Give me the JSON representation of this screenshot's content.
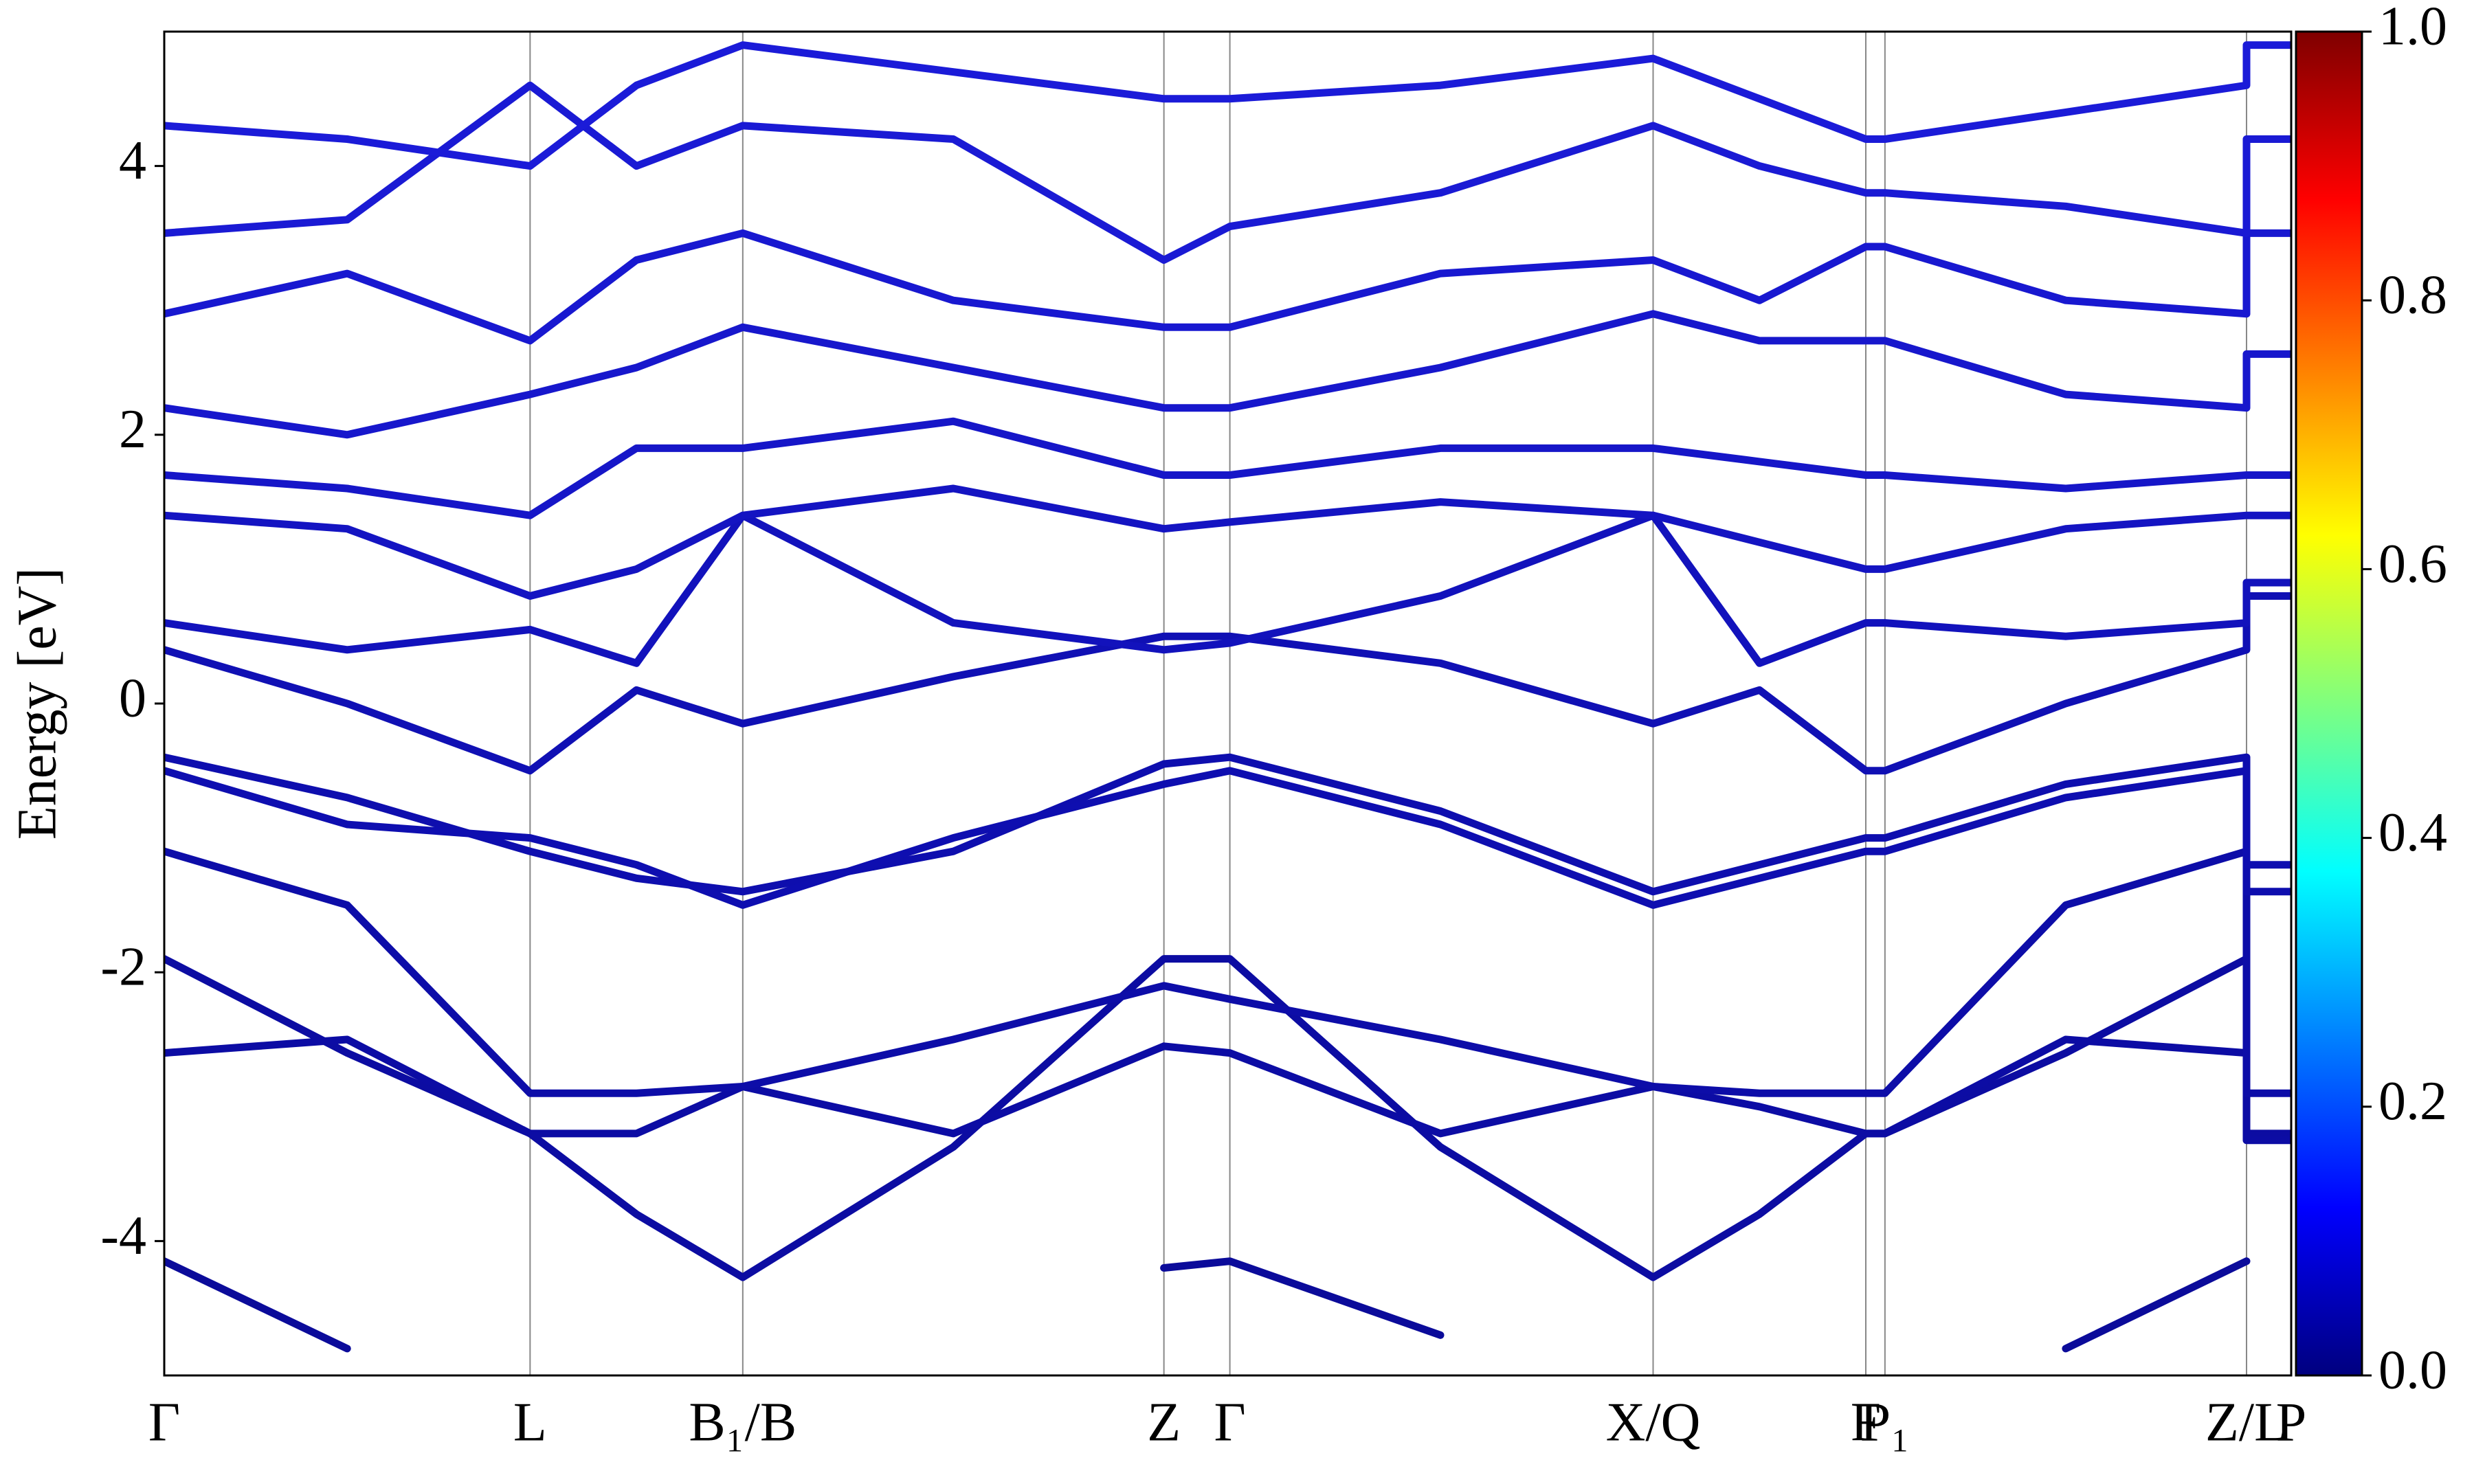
{
  "chart_data": {
    "type": "line",
    "ylabel": "Energy [eV]",
    "xlim": [
      0,
      1
    ],
    "ylim": [
      -5,
      5
    ],
    "yticks": [
      -4,
      -2,
      0,
      2,
      4
    ],
    "xticks": [
      {
        "value": 0,
        "label": "Γ"
      },
      {
        "value": 0.172,
        "label": "L"
      },
      {
        "value": 0.272,
        "label": "B₁/B"
      },
      {
        "value": 0.47,
        "label": "Z"
      },
      {
        "value": 0.501,
        "label": "Γ"
      },
      {
        "value": 0.7,
        "label": "X/Q"
      },
      {
        "value": 0.8,
        "label": "F"
      },
      {
        "value": 0.809,
        "label": "P₁"
      },
      {
        "value": 0.979,
        "label": "Z/L"
      },
      {
        "value": 1.0,
        "label": "P"
      }
    ],
    "x": [
      0,
      0.086,
      0.172,
      0.222,
      0.272,
      0.371,
      0.47,
      0.501,
      0.6,
      0.7,
      0.75,
      0.8,
      0.809,
      0.894,
      0.979,
      0.979,
      1.0
    ],
    "series": [
      {
        "color": "#0b0b9a",
        "values": [
          -4.15,
          -4.8,
          null,
          null,
          null,
          null,
          -4.2,
          -4.15,
          -4.7,
          null,
          null,
          null,
          null,
          -4.8,
          -4.15,
          null,
          null
        ]
      },
      {
        "color": "#0c0ca2",
        "values": [
          -1.9,
          -2.6,
          -3.2,
          -3.8,
          -4.27,
          -3.3,
          -1.9,
          -1.9,
          -3.3,
          -4.27,
          -3.8,
          -3.2,
          -3.2,
          -2.6,
          -1.9,
          -3.2,
          -3.2
        ]
      },
      {
        "color": "#0c0ca4",
        "values": [
          -2.6,
          -2.5,
          -3.2,
          -3.2,
          -2.85,
          -3.2,
          -2.55,
          -2.6,
          -3.2,
          -2.85,
          -3.0,
          -3.2,
          -3.2,
          -2.5,
          -2.6,
          -3.25,
          -3.25
        ]
      },
      {
        "color": "#0d0da8",
        "values": [
          -1.1,
          -1.5,
          -2.9,
          -2.9,
          -2.85,
          -2.5,
          -2.1,
          -2.2,
          -2.5,
          -2.85,
          -2.9,
          -2.9,
          -2.9,
          -1.5,
          -1.1,
          -2.9,
          -2.9
        ]
      },
      {
        "color": "#0e0eae",
        "values": [
          -0.4,
          -0.7,
          -1.1,
          -1.3,
          -1.4,
          -1.1,
          -0.45,
          -0.4,
          -0.8,
          -1.4,
          -1.2,
          -1.0,
          -1.0,
          -0.6,
          -0.4,
          -1.4,
          -1.4
        ]
      },
      {
        "color": "#0e0eb0",
        "values": [
          -0.5,
          -0.9,
          -1.0,
          -1.2,
          -1.5,
          -1.0,
          -0.6,
          -0.5,
          -0.9,
          -1.5,
          -1.3,
          -1.1,
          -1.1,
          -0.7,
          -0.5,
          -1.2,
          -1.2
        ]
      },
      {
        "color": "#1010b4",
        "values": [
          0.4,
          0.0,
          -0.5,
          0.1,
          -0.15,
          0.2,
          0.5,
          0.5,
          0.3,
          -0.15,
          0.1,
          -0.5,
          -0.5,
          0.0,
          0.4,
          0.8,
          0.8
        ]
      },
      {
        "color": "#1212bc",
        "values": [
          0.6,
          0.4,
          0.55,
          0.3,
          1.4,
          0.6,
          0.4,
          0.45,
          0.8,
          1.4,
          0.3,
          0.6,
          0.6,
          0.5,
          0.6,
          0.9,
          0.9
        ]
      },
      {
        "color": "#1414c2",
        "values": [
          1.4,
          1.3,
          0.8,
          1.0,
          1.4,
          1.6,
          1.3,
          1.35,
          1.5,
          1.4,
          1.2,
          1.0,
          1.0,
          1.3,
          1.4,
          1.4,
          1.4
        ]
      },
      {
        "color": "#1616c8",
        "values": [
          1.7,
          1.6,
          1.4,
          1.9,
          1.9,
          2.1,
          1.7,
          1.7,
          1.9,
          1.9,
          1.8,
          1.7,
          1.7,
          1.6,
          1.7,
          1.7,
          1.7
        ]
      },
      {
        "color": "#1717cc",
        "values": [
          2.2,
          2.0,
          2.3,
          2.5,
          2.8,
          2.5,
          2.2,
          2.2,
          2.5,
          2.9,
          2.7,
          2.7,
          2.7,
          2.3,
          2.2,
          2.6,
          2.6
        ]
      },
      {
        "color": "#1818d0",
        "values": [
          2.9,
          3.2,
          2.7,
          3.3,
          3.5,
          3.0,
          2.8,
          2.8,
          3.2,
          3.3,
          3.0,
          3.4,
          3.4,
          3.0,
          2.9,
          3.5,
          3.5
        ]
      },
      {
        "color": "#1a1ad4",
        "values": [
          3.5,
          3.6,
          4.6,
          4.0,
          4.3,
          4.2,
          3.3,
          3.55,
          3.8,
          4.3,
          4.0,
          3.8,
          3.8,
          3.7,
          3.5,
          4.2,
          4.2
        ]
      },
      {
        "color": "#1b1bd8",
        "values": [
          4.3,
          4.2,
          4.0,
          4.6,
          4.9,
          4.7,
          4.5,
          4.5,
          4.6,
          4.8,
          4.5,
          4.2,
          4.2,
          4.4,
          4.6,
          4.9,
          4.9
        ]
      }
    ],
    "colorbar": {
      "colormap": "jet",
      "lim": [
        0,
        1
      ],
      "ticks": [
        {
          "value": 0,
          "label": "0.0"
        },
        {
          "value": 0.2,
          "label": "0.2"
        },
        {
          "value": 0.4,
          "label": "0.4"
        },
        {
          "value": 0.6,
          "label": "0.6"
        },
        {
          "value": 0.8,
          "label": "0.8"
        },
        {
          "value": 1.0,
          "label": "1.0"
        }
      ]
    }
  }
}
